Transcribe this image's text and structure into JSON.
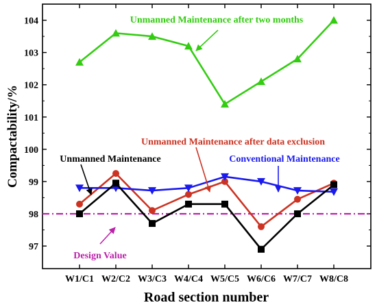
{
  "chart_data": {
    "type": "line",
    "xlabel": "Road section number",
    "ylabel": "Compactability/%",
    "ylim": [
      96.3,
      104.5
    ],
    "categories": [
      "W1/C1",
      "W2/C2",
      "W3/C3",
      "W4/C4",
      "W5/C5",
      "W6/C6",
      "W7/C7",
      "W8/C8"
    ],
    "yticks": [
      97,
      98,
      99,
      100,
      101,
      102,
      103,
      104
    ],
    "series": [
      {
        "name": "Unmanned Maintenance after two months",
        "color": "#33cc11",
        "marker": "triangle-up",
        "values": [
          102.7,
          103.6,
          103.5,
          103.2,
          101.4,
          102.1,
          102.8,
          104.0
        ]
      },
      {
        "name": "Unmanned Maintenance after data exclusion",
        "color": "#cc3322",
        "marker": "circle",
        "values": [
          98.3,
          99.25,
          98.1,
          98.6,
          99.0,
          97.6,
          98.45,
          98.95
        ]
      },
      {
        "name": "Conventional Maintenance",
        "color": "#1a1aee",
        "marker": "triangle-down",
        "values": [
          98.8,
          98.8,
          98.72,
          98.8,
          99.15,
          99.0,
          98.72,
          98.68
        ]
      },
      {
        "name": "Unmanned Maintenance",
        "color": "#000000",
        "marker": "square",
        "values": [
          98.0,
          98.95,
          97.7,
          98.3,
          98.3,
          96.9,
          98.0,
          98.9
        ]
      }
    ],
    "reference_line": {
      "name": "Design Value",
      "value": 98.0,
      "color": "#bb22aa",
      "style": "dash-dot"
    },
    "annotations": [
      {
        "text": "Unmanned Maintenance after two months",
        "color": "#33cc11"
      },
      {
        "text": "Unmanned Maintenance after data exclusion",
        "color": "#cc3322"
      },
      {
        "text": "Unmanned Maintenance",
        "color": "#000000"
      },
      {
        "text": "Conventional Maintenance",
        "color": "#1a1aee"
      },
      {
        "text": "Design Value",
        "color": "#bb22aa"
      }
    ]
  }
}
